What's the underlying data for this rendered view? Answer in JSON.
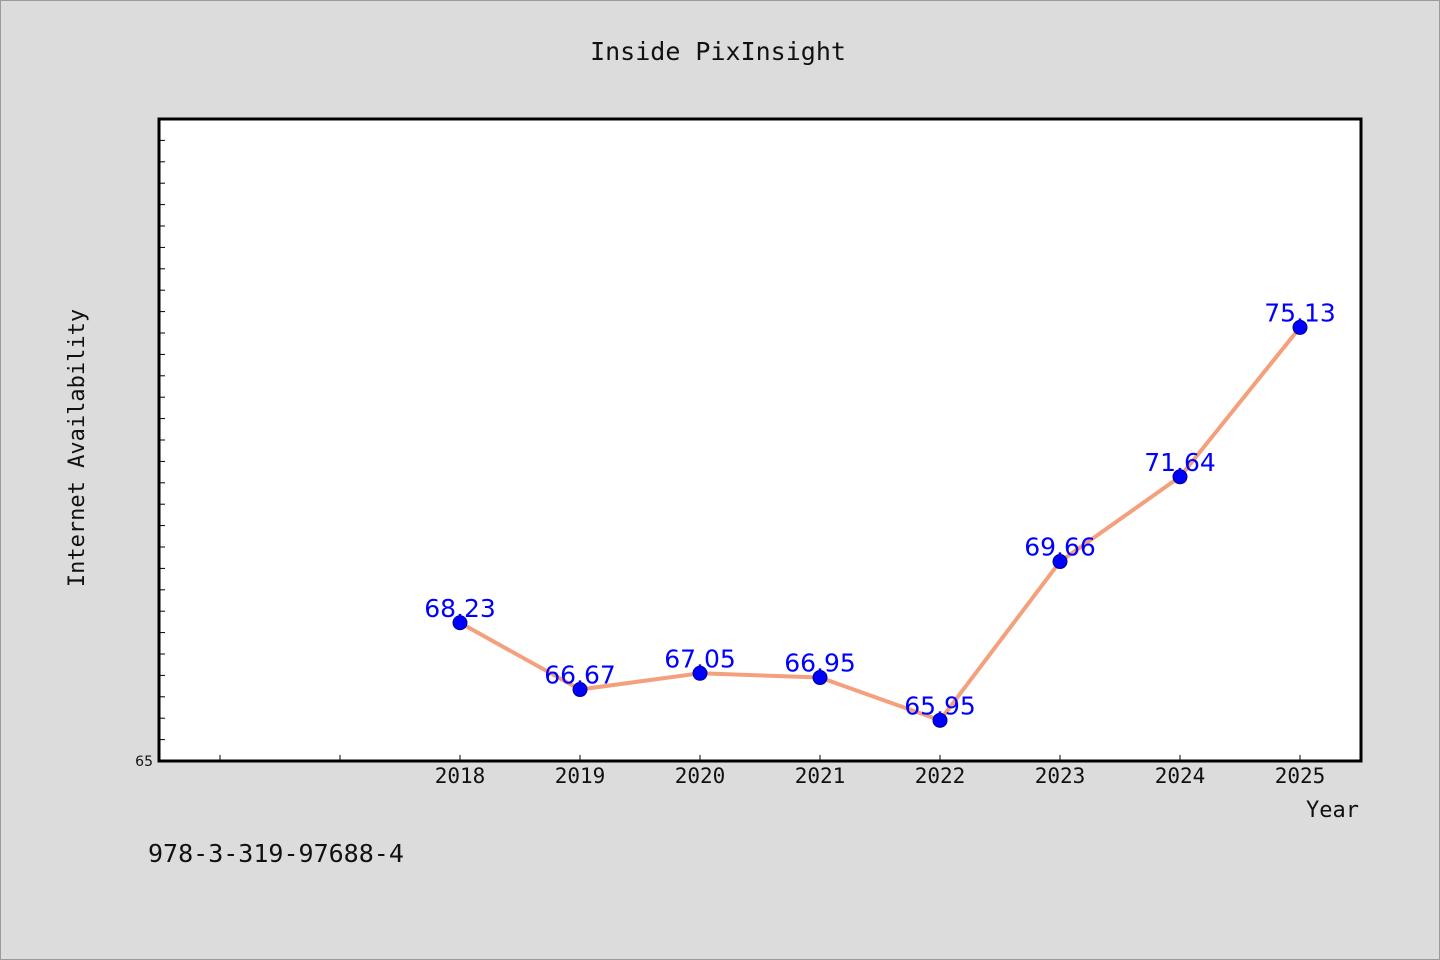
{
  "chart_data": {
    "type": "line",
    "title": "Inside PixInsight",
    "xlabel": "Year",
    "ylabel": "Internet Availability",
    "categories": [
      "2018",
      "2019",
      "2020",
      "2021",
      "2022",
      "2023",
      "2024",
      "2025"
    ],
    "series": [
      {
        "values": [
          68.23,
          66.67,
          67.05,
          66.95,
          65.95,
          69.66,
          71.64,
          75.13
        ],
        "labels": [
          "68.23",
          "66.67",
          "67.05",
          "66.95",
          "65.95",
          "69.66",
          "71.64",
          "75.13"
        ]
      }
    ],
    "ylim": [
      65,
      80
    ],
    "y_tick_labels": [
      "65"
    ],
    "grid": false,
    "line_color": "#f4a07c",
    "marker_color": "#0000ff",
    "label_color": "#0000ff"
  },
  "footer": {
    "isbn": "978-3-319-97688-4"
  }
}
